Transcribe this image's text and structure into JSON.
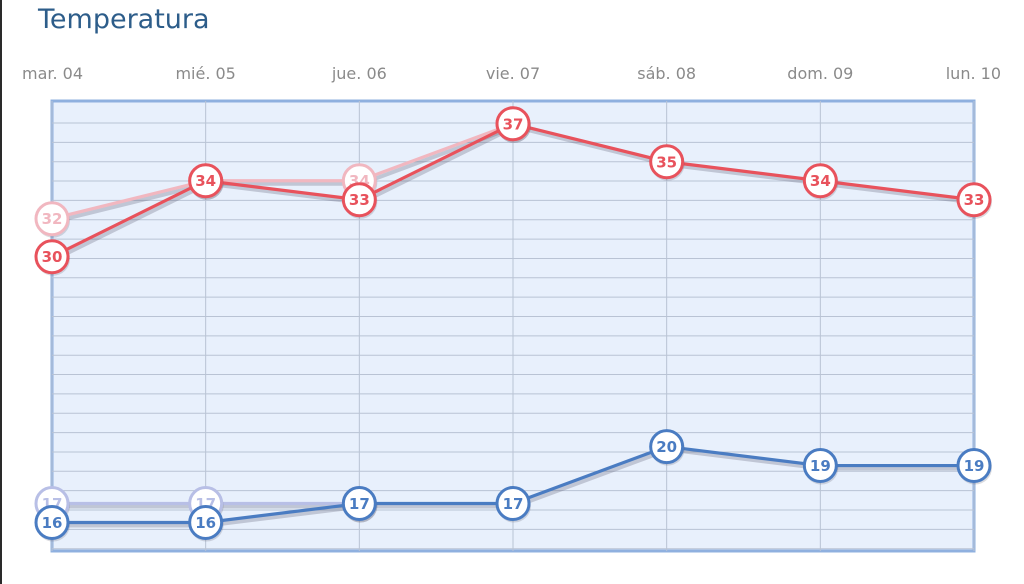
{
  "title": "Temperatura",
  "chart_data": {
    "type": "line",
    "title": "Temperatura",
    "categories": [
      "mar. 04",
      "mié. 05",
      "jue. 06",
      "vie. 07",
      "sáb. 08",
      "dom. 09",
      "lun. 10"
    ],
    "ylim": [
      14.5,
      38.2
    ],
    "grid": true,
    "series": [
      {
        "color": "#f1b7c0",
        "values": [
          32,
          34,
          34,
          37,
          null,
          null,
          null
        ]
      },
      {
        "color": "#e8525c",
        "values": [
          30,
          34,
          33,
          37,
          35,
          34,
          33
        ]
      },
      {
        "color": "#b8bfe6",
        "values": [
          17,
          17,
          17,
          null,
          null,
          null,
          null
        ]
      },
      {
        "color": "#4a7cc2",
        "values": [
          16,
          16,
          17,
          17,
          20,
          19,
          19
        ]
      }
    ]
  }
}
